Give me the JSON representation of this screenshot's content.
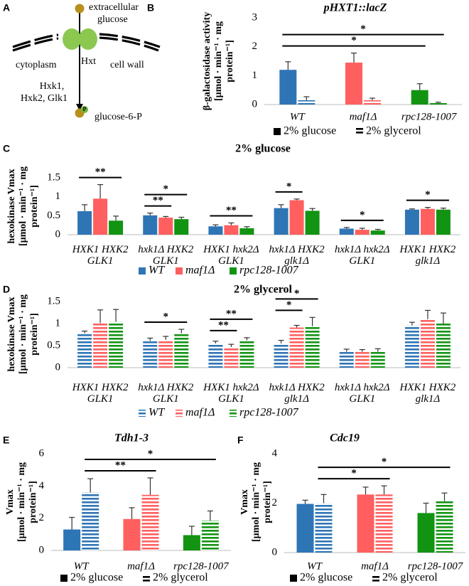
{
  "diagram": {
    "panel": "A",
    "extracellular": [
      "extracellular",
      "glucose"
    ],
    "transporter": "Hxt",
    "cytoplasm": "cytoplasm",
    "cell_wall": "cell wall",
    "enzymes": [
      "Hxk1,",
      "Hxk2, Glk1"
    ],
    "phosphate": "P",
    "product": "glucose-6-P"
  },
  "chart_data": [
    {
      "type": "bar",
      "panel": "B",
      "title": "pHXT1::lacZ",
      "ylabel": [
        "β-galactosidase activity",
        "[μmol · min⁻¹ · mg",
        "protein⁻¹]"
      ],
      "categories": [
        "WT",
        "maf1Δ",
        "rpc128-1007"
      ],
      "colors": [
        "#2e75b6",
        "#ff5f5f",
        "#129412"
      ],
      "series": [
        {
          "name": "2% glucose",
          "color": "#000000",
          "hatch": false,
          "values": [
            1.2,
            1.45,
            0.5
          ],
          "errors": [
            0.28,
            0.33,
            0.22
          ]
        },
        {
          "name": "2% glycerol",
          "color": "#000000",
          "hatch": true,
          "values": [
            0.15,
            0.15,
            0.05
          ],
          "errors": [
            0.12,
            0.07,
            0.03
          ]
        }
      ],
      "ylim": [
        0,
        3
      ],
      "yticks": [
        0,
        1,
        2,
        3
      ],
      "grid": false,
      "annotations": [
        {
          "label": "*",
          "from": [
            0,
            0
          ],
          "to": [
            2,
            0
          ]
        },
        {
          "label": "*",
          "from": [
            0,
            0
          ],
          "to": [
            2,
            1
          ]
        }
      ]
    },
    {
      "type": "bar",
      "panel": "C",
      "title": "2% glucose",
      "ylabel": [
        "hexokinase Vmax",
        "[μmol · min⁻¹ · mg",
        "protein⁻¹]"
      ],
      "categories": [
        "HXK1 HXK2\nGLK1",
        "hxk1Δ HXK2\nGLK1",
        "HXK1 hxk2Δ\nGLK1",
        "hxk1Δ HXK2\nglk1Δ",
        "hxk1Δ hxk2Δ\nGLK1",
        "HXK1 HXK2\nglk1Δ"
      ],
      "hatch": false,
      "series": [
        {
          "name": "WT",
          "color": "#2e75b6",
          "values": [
            0.62,
            0.51,
            0.22,
            0.7,
            0.16,
            0.66
          ],
          "errors": [
            0.17,
            0.06,
            0.04,
            0.09,
            0.03,
            0.02
          ]
        },
        {
          "name": "maf1Δ",
          "color": "#ff5f5f",
          "values": [
            0.95,
            0.45,
            0.25,
            0.91,
            0.13,
            0.68
          ],
          "errors": [
            0.37,
            0.03,
            0.06,
            0.03,
            0.04,
            0.04
          ]
        },
        {
          "name": "rpc128-1007",
          "color": "#129412",
          "values": [
            0.37,
            0.41,
            0.17,
            0.63,
            0.11,
            0.66
          ],
          "errors": [
            0.12,
            0.05,
            0.04,
            0.06,
            0.03,
            0.04
          ]
        }
      ],
      "ylim": [
        0,
        1.5
      ],
      "yticks": [
        0,
        0.5,
        1,
        1.5
      ],
      "grid": false,
      "annotations": [
        {
          "label": "**",
          "from": [
            0,
            0
          ],
          "to": [
            0,
            2
          ]
        },
        {
          "label": "**",
          "from": [
            1,
            0
          ],
          "to": [
            1,
            1
          ]
        },
        {
          "label": "*",
          "from": [
            1,
            0
          ],
          "to": [
            1,
            2
          ]
        },
        {
          "label": "**",
          "from": [
            2,
            0
          ],
          "to": [
            2,
            2
          ]
        },
        {
          "label": "*",
          "from": [
            3,
            0
          ],
          "to": [
            3,
            1
          ]
        },
        {
          "label": "*",
          "from": [
            4,
            0
          ],
          "to": [
            4,
            2
          ]
        },
        {
          "label": "*",
          "from": [
            5,
            0
          ],
          "to": [
            5,
            2
          ]
        }
      ]
    },
    {
      "type": "bar",
      "panel": "D",
      "title": "2% glycerol",
      "ylabel": [
        "hexokinase Vmax",
        "[μmol · min⁻¹ · mg",
        "protein⁻¹]"
      ],
      "categories": [
        "HXK1 HXK2\nGLK1",
        "hxk1Δ HXK2\nGLK1",
        "HXK1 hxk2Δ\nGLK1",
        "hxk1Δ HXK2\nglk1Δ",
        "hxk1Δ hxk2Δ\nGLK1",
        "HXK1 HXK2\nglk1Δ"
      ],
      "hatch": true,
      "series": [
        {
          "name": "WT",
          "color": "#2e75b6",
          "values": [
            0.78,
            0.61,
            0.55,
            0.55,
            0.36,
            0.96
          ],
          "errors": [
            0.05,
            0.06,
            0.05,
            0.07,
            0.06,
            0.07
          ]
        },
        {
          "name": "maf1Δ",
          "color": "#ff5f5f",
          "values": [
            1.01,
            0.63,
            0.47,
            0.91,
            0.36,
            1.1
          ],
          "errors": [
            0.3,
            0.08,
            0.06,
            0.05,
            0.05,
            0.2
          ]
        },
        {
          "name": "rpc128-1007",
          "color": "#129412",
          "values": [
            1.04,
            0.78,
            0.62,
            0.94,
            0.36,
            1.0
          ],
          "errors": [
            0.28,
            0.09,
            0.06,
            0.2,
            0.07,
            0.24
          ]
        }
      ],
      "ylim": [
        0,
        1.5
      ],
      "yticks": [
        0,
        0.5,
        1,
        1.5
      ],
      "grid": false,
      "annotations": [
        {
          "label": "*",
          "from": [
            1,
            0
          ],
          "to": [
            1,
            2
          ]
        },
        {
          "label": "**",
          "from": [
            2,
            0
          ],
          "to": [
            2,
            1
          ]
        },
        {
          "label": "**",
          "from": [
            2,
            0
          ],
          "to": [
            2,
            2
          ]
        },
        {
          "label": "*",
          "from": [
            3,
            0
          ],
          "to": [
            3,
            1
          ]
        },
        {
          "label": "*",
          "from": [
            3,
            0
          ],
          "to": [
            3,
            2
          ]
        }
      ]
    },
    {
      "type": "bar",
      "panel": "E",
      "title": "Tdh1-3",
      "ylabel": [
        "Vmax",
        "[μmol · min⁻¹ · mg",
        "protein⁻¹]"
      ],
      "categories": [
        "WT",
        "maf1Δ",
        "rpc128-1007"
      ],
      "colors": [
        "#2e75b6",
        "#ff5f5f",
        "#129412"
      ],
      "series": [
        {
          "name": "2% glucose",
          "color": "#000000",
          "hatch": false,
          "values": [
            1.3,
            1.95,
            0.95
          ],
          "errors": [
            0.75,
            0.7,
            0.55
          ]
        },
        {
          "name": "2% glycerol",
          "color": "#000000",
          "hatch": true,
          "values": [
            3.6,
            3.45,
            1.85
          ],
          "errors": [
            0.85,
            1.05,
            0.6
          ]
        }
      ],
      "ylim": [
        0,
        6
      ],
      "yticks": [
        0,
        2,
        4,
        6
      ],
      "grid": false,
      "annotations": [
        {
          "label": "**",
          "from": [
            0,
            1
          ],
          "to": [
            1,
            1
          ]
        },
        {
          "label": "*",
          "from": [
            0,
            1
          ],
          "to": [
            2,
            1
          ]
        }
      ]
    },
    {
      "type": "bar",
      "panel": "F",
      "title": "Cdc19",
      "ylabel": [
        "Vmax",
        "[μmol · min⁻¹ · mg",
        "protein⁻¹]"
      ],
      "categories": [
        "WT",
        "maf1Δ",
        "rpc128-1007"
      ],
      "colors": [
        "#2e75b6",
        "#ff5f5f",
        "#129412"
      ],
      "series": [
        {
          "name": "2% glucose",
          "color": "#000000",
          "hatch": false,
          "values": [
            1.97,
            2.35,
            1.6
          ],
          "errors": [
            0.15,
            0.3,
            0.4
          ]
        },
        {
          "name": "2% glycerol",
          "color": "#000000",
          "hatch": true,
          "values": [
            2.0,
            2.35,
            2.08
          ],
          "errors": [
            0.35,
            0.35,
            0.33
          ]
        }
      ],
      "ylim": [
        0,
        4
      ],
      "yticks": [
        0,
        2,
        4
      ],
      "grid": false,
      "annotations": [
        {
          "label": "*",
          "from": [
            0,
            1
          ],
          "to": [
            1,
            1
          ]
        },
        {
          "label": "*",
          "from": [
            0,
            1
          ],
          "to": [
            2,
            1
          ]
        }
      ]
    }
  ]
}
